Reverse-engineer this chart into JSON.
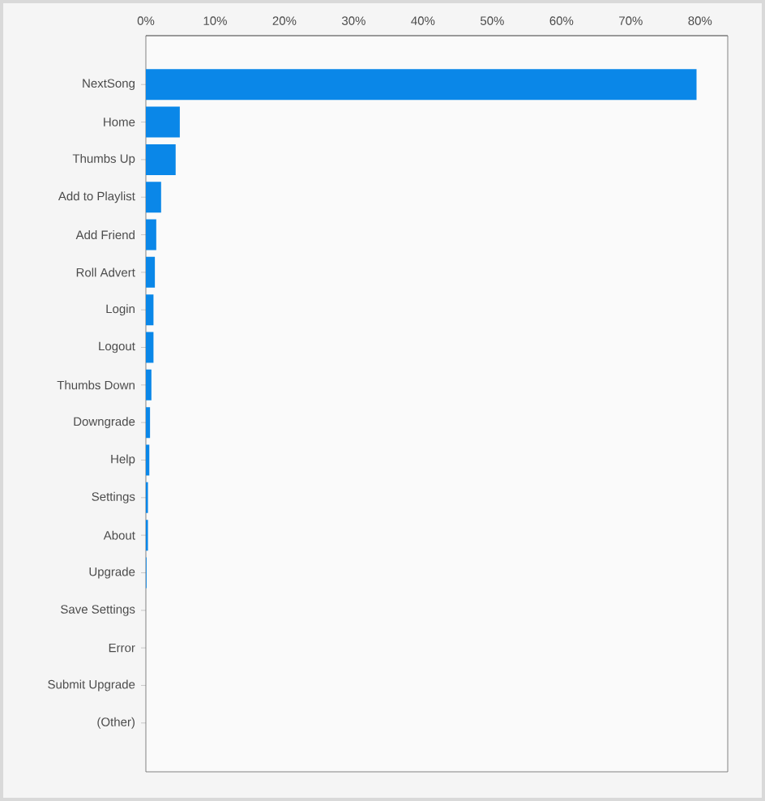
{
  "chart_data": {
    "type": "bar",
    "orientation": "horizontal",
    "categories": [
      "NextSong",
      "Home",
      "Thumbs Up",
      "Add to Playlist",
      "Add Friend",
      "Roll Advert",
      "Login",
      "Logout",
      "Thumbs Down",
      "Downgrade",
      "Help",
      "Settings",
      "About",
      "Upgrade",
      "Save Settings",
      "Error",
      "Submit Upgrade",
      "(Other)"
    ],
    "values": [
      79.5,
      4.9,
      4.3,
      2.2,
      1.5,
      1.3,
      1.1,
      1.1,
      0.8,
      0.6,
      0.5,
      0.3,
      0.3,
      0.1,
      0,
      0,
      0,
      0
    ],
    "color": "#0a87e8",
    "xlim": [
      0,
      84
    ],
    "xticks": [
      {
        "value": 0,
        "label": "0%"
      },
      {
        "value": 10,
        "label": "10%"
      },
      {
        "value": 20,
        "label": "20%"
      },
      {
        "value": 30,
        "label": "30%"
      },
      {
        "value": 40,
        "label": "40%"
      },
      {
        "value": 50,
        "label": "50%"
      },
      {
        "value": 60,
        "label": "60%"
      },
      {
        "value": 70,
        "label": "70%"
      },
      {
        "value": 80,
        "label": "80%"
      }
    ],
    "grid": false
  }
}
